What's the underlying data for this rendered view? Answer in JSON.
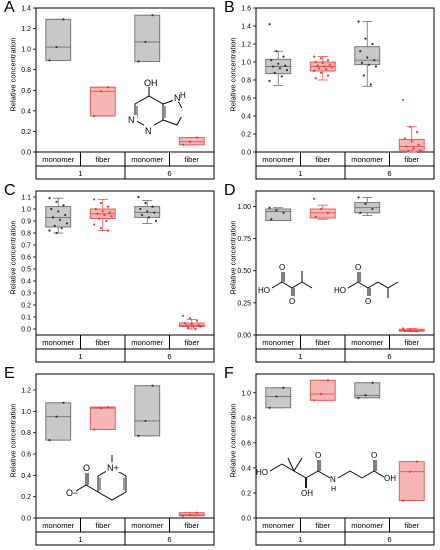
{
  "chart_data": [
    {
      "type": "box",
      "panel_label": "A",
      "ylabel": "Relative concentration",
      "ylim": [
        0,
        1.4
      ],
      "yticks": [
        "0.0",
        "0.2",
        "0.4",
        "0.6",
        "0.8",
        "1.0",
        "1.2",
        "1.4"
      ],
      "categories": [
        "monomer",
        "fiber",
        "monomer",
        "fiber"
      ],
      "groups": [
        "1",
        "6"
      ],
      "boxes": [
        {
          "category": "monomer",
          "group": "1",
          "color": "gray",
          "q1": 0.89,
          "median": 1.02,
          "q3": 1.29,
          "whisker_low": 0.89,
          "whisker_high": 1.29,
          "points": [
            0.89,
            1.02,
            1.29
          ]
        },
        {
          "category": "fiber",
          "group": "1",
          "color": "red",
          "q1": 0.35,
          "median": 0.59,
          "q3": 0.63,
          "whisker_low": 0.35,
          "whisker_high": 0.63,
          "points": [
            0.35,
            0.59,
            0.63
          ]
        },
        {
          "category": "monomer",
          "group": "6",
          "color": "gray",
          "q1": 0.88,
          "median": 1.07,
          "q3": 1.33,
          "whisker_low": 0.88,
          "whisker_high": 1.33,
          "points": [
            0.88,
            1.07,
            1.33
          ]
        },
        {
          "category": "fiber",
          "group": "6",
          "color": "red",
          "q1": 0.07,
          "median": 0.1,
          "q3": 0.14,
          "whisker_low": 0.07,
          "whisker_high": 0.14,
          "points": [
            0.07,
            0.1,
            0.14
          ]
        }
      ],
      "structure_labels": [
        "OH",
        "N",
        "N",
        "N",
        "H"
      ]
    },
    {
      "type": "box",
      "panel_label": "B",
      "ylabel": "Relative concentration",
      "ylim": [
        0,
        1.6
      ],
      "yticks": [
        "0.0",
        "0.2",
        "0.4",
        "0.6",
        "0.8",
        "1.0",
        "1.2",
        "1.4",
        "1.6"
      ],
      "categories": [
        "monomer",
        "fiber",
        "monomer",
        "fiber"
      ],
      "groups": [
        "1",
        "6"
      ],
      "boxes": [
        {
          "category": "monomer",
          "group": "1",
          "color": "gray",
          "q1": 0.87,
          "median": 0.95,
          "q3": 1.03,
          "whisker_low": 0.74,
          "whisker_high": 1.12,
          "points": [
            1.42,
            1.12,
            1.06,
            1.02,
            0.98,
            0.96,
            0.95,
            0.93,
            0.91,
            0.88,
            0.84,
            0.79
          ]
        },
        {
          "category": "fiber",
          "group": "1",
          "color": "red",
          "q1": 0.9,
          "median": 0.95,
          "q3": 1.0,
          "whisker_low": 0.8,
          "whisker_high": 1.06,
          "points": [
            1.06,
            1.04,
            1.02,
            1.0,
            0.99,
            0.97,
            0.96,
            0.95,
            0.94,
            0.93,
            0.92,
            0.9,
            0.88,
            0.85,
            0.82
          ]
        },
        {
          "category": "monomer",
          "group": "6",
          "color": "gray",
          "q1": 0.97,
          "median": 1.02,
          "q3": 1.17,
          "whisker_low": 0.73,
          "whisker_high": 1.45,
          "points": [
            1.45,
            1.26,
            1.2,
            1.12,
            1.05,
            1.02,
            0.99,
            0.97,
            0.95,
            0.85,
            0.75
          ]
        },
        {
          "category": "fiber",
          "group": "6",
          "color": "red",
          "q1": 0.02,
          "median": 0.06,
          "q3": 0.14,
          "whisker_low": 0.0,
          "whisker_high": 0.28,
          "points": [
            0.58,
            0.28,
            0.22,
            0.15,
            0.12,
            0.08,
            0.06,
            0.04,
            0.02,
            0.01
          ]
        }
      ]
    },
    {
      "type": "box",
      "panel_label": "C",
      "ylabel": "Relative concentration",
      "ylim": [
        -0.05,
        1.15
      ],
      "yticks": [
        "0.0",
        "0.1",
        "0.2",
        "0.3",
        "0.4",
        "0.5",
        "0.6",
        "0.7",
        "0.8",
        "0.9",
        "1.0",
        "1.1"
      ],
      "categories": [
        "monomer",
        "fiber",
        "monomer",
        "fiber"
      ],
      "groups": [
        "1",
        "6"
      ],
      "boxes": [
        {
          "category": "monomer",
          "group": "1",
          "color": "gray",
          "q1": 0.85,
          "median": 0.93,
          "q3": 1.02,
          "whisker_low": 0.8,
          "whisker_high": 1.09,
          "points": [
            1.09,
            1.06,
            1.03,
            1.0,
            0.98,
            0.95,
            0.93,
            0.91,
            0.88,
            0.86,
            0.84,
            0.82,
            0.8
          ]
        },
        {
          "category": "fiber",
          "group": "1",
          "color": "red",
          "q1": 0.92,
          "median": 0.96,
          "q3": 1.0,
          "whisker_low": 0.82,
          "whisker_high": 1.08,
          "points": [
            1.08,
            1.05,
            1.02,
            1.0,
            0.98,
            0.97,
            0.96,
            0.95,
            0.94,
            0.92,
            0.9,
            0.87,
            0.84,
            0.82
          ]
        },
        {
          "category": "monomer",
          "group": "6",
          "color": "gray",
          "q1": 0.93,
          "median": 0.97,
          "q3": 1.02,
          "whisker_low": 0.88,
          "whisker_high": 1.07,
          "points": [
            1.1,
            1.05,
            1.02,
            1.0,
            0.98,
            0.97,
            0.95,
            0.93,
            0.9
          ]
        },
        {
          "category": "fiber",
          "group": "6",
          "color": "red",
          "q1": 0.02,
          "median": 0.03,
          "q3": 0.05,
          "whisker_low": 0.0,
          "whisker_high": 0.08,
          "points": [
            0.11,
            0.09,
            0.07,
            0.05,
            0.04,
            0.03,
            0.03,
            0.02,
            0.02,
            0.01,
            0.0
          ]
        }
      ]
    },
    {
      "type": "box",
      "panel_label": "D",
      "ylabel": "Relative concentration",
      "ylim": [
        0,
        1.12
      ],
      "yticks": [
        "0.00",
        "0.25",
        "0.50",
        "0.75",
        "1.00"
      ],
      "categories": [
        "monomer",
        "fiber",
        "monomer",
        "fiber"
      ],
      "groups": [
        "1",
        "6"
      ],
      "boxes": [
        {
          "category": "monomer",
          "group": "1",
          "color": "gray",
          "q1": 0.89,
          "median": 0.96,
          "q3": 0.98,
          "whisker_low": 0.89,
          "whisker_high": 0.99,
          "points": [
            0.99,
            0.97,
            0.95,
            0.9
          ]
        },
        {
          "category": "fiber",
          "group": "1",
          "color": "red",
          "q1": 0.91,
          "median": 0.95,
          "q3": 0.98,
          "whisker_low": 0.9,
          "whisker_high": 1.01,
          "points": [
            1.06,
            0.98,
            0.95,
            0.92
          ]
        },
        {
          "category": "monomer",
          "group": "6",
          "color": "gray",
          "q1": 0.95,
          "median": 0.99,
          "q3": 1.03,
          "whisker_low": 0.93,
          "whisker_high": 1.07,
          "points": [
            1.07,
            1.02,
            0.98,
            0.95
          ]
        },
        {
          "category": "fiber",
          "group": "6",
          "color": "red",
          "q1": 0.03,
          "median": 0.035,
          "q3": 0.045,
          "whisker_low": 0.025,
          "whisker_high": 0.05,
          "points": [
            0.05,
            0.04,
            0.03,
            0.03
          ]
        }
      ],
      "structure_labels": [
        "HO",
        "O",
        "O",
        "HO",
        "O",
        "O"
      ]
    },
    {
      "type": "box",
      "panel_label": "E",
      "ylabel": "Relative concentration",
      "ylim": [
        0,
        1.35
      ],
      "yticks": [
        "0.0",
        "0.2",
        "0.4",
        "0.6",
        "0.8",
        "1.0",
        "1.2"
      ],
      "categories": [
        "monomer",
        "fiber",
        "monomer",
        "fiber"
      ],
      "groups": [
        "1",
        "6"
      ],
      "boxes": [
        {
          "category": "monomer",
          "group": "1",
          "color": "gray",
          "q1": 0.73,
          "median": 0.95,
          "q3": 1.08,
          "whisker_low": 0.73,
          "whisker_high": 1.08,
          "points": [
            0.73,
            0.95,
            1.08
          ]
        },
        {
          "category": "fiber",
          "group": "1",
          "color": "red",
          "q1": 0.83,
          "median": 1.03,
          "q3": 1.04,
          "whisker_low": 0.83,
          "whisker_high": 1.04,
          "points": [
            0.83,
            1.03,
            1.04
          ]
        },
        {
          "category": "monomer",
          "group": "6",
          "color": "gray",
          "q1": 0.77,
          "median": 0.91,
          "q3": 1.24,
          "whisker_low": 0.77,
          "whisker_high": 1.24,
          "points": [
            0.77,
            0.91,
            1.24
          ]
        },
        {
          "category": "fiber",
          "group": "6",
          "color": "red",
          "q1": 0.02,
          "median": 0.03,
          "q3": 0.05,
          "whisker_low": 0.02,
          "whisker_high": 0.05,
          "points": [
            0.02,
            0.03,
            0.05
          ]
        }
      ],
      "structure_labels": [
        "O",
        "N+",
        "O−"
      ]
    },
    {
      "type": "box",
      "panel_label": "F",
      "ylabel": "Relative concentration",
      "ylim": [
        0,
        1.15
      ],
      "yticks": [
        "0.0",
        "0.2",
        "0.4",
        "0.6",
        "0.8",
        "1.0"
      ],
      "categories": [
        "monomer",
        "fiber",
        "monomer",
        "fiber"
      ],
      "groups": [
        "1",
        "6"
      ],
      "boxes": [
        {
          "category": "monomer",
          "group": "1",
          "color": "gray",
          "q1": 0.88,
          "median": 0.97,
          "q3": 1.04,
          "whisker_low": 0.88,
          "whisker_high": 1.04,
          "points": [
            0.88,
            0.97,
            1.04
          ]
        },
        {
          "category": "fiber",
          "group": "1",
          "color": "red",
          "q1": 0.94,
          "median": 0.99,
          "q3": 1.1,
          "whisker_low": 0.94,
          "whisker_high": 1.1,
          "points": [
            0.94,
            0.99,
            1.1
          ]
        },
        {
          "category": "monomer",
          "group": "6",
          "color": "gray",
          "q1": 0.96,
          "median": 0.98,
          "q3": 1.08,
          "whisker_low": 0.96,
          "whisker_high": 1.08,
          "points": [
            0.96,
            0.98,
            1.08
          ]
        },
        {
          "category": "fiber",
          "group": "6",
          "color": "red",
          "q1": 0.14,
          "median": 0.37,
          "q3": 0.45,
          "whisker_low": 0.14,
          "whisker_high": 0.45,
          "points": [
            0.14,
            0.37,
            0.45
          ]
        }
      ],
      "structure_labels": [
        "HO",
        "OH",
        "N",
        "H",
        "O",
        "OH",
        "O"
      ]
    }
  ]
}
